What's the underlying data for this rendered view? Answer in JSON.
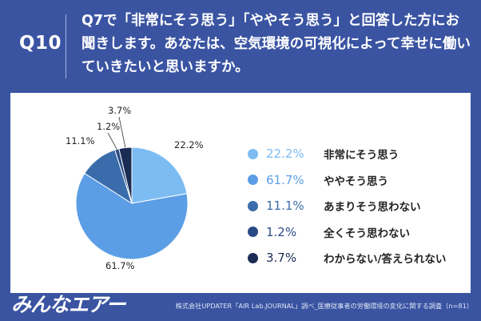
{
  "header": {
    "question_number": "Q10",
    "question_text": "Q7で「非常にそう思う」「ややそう思う」と回答した方にお聞きします。あなたは、空気環境の可視化によって幸せに働いていきたいと思いますか。"
  },
  "chart_data": {
    "type": "pie",
    "title": "",
    "slices": [
      {
        "label": "非常にそう思う",
        "value": 22.2,
        "display": "22.2%",
        "color": "#7cbcf3"
      },
      {
        "label": "ややそう思う",
        "value": 61.7,
        "display": "61.7%",
        "color": "#5c9ee6"
      },
      {
        "label": "あまりそう思わない",
        "value": 11.1,
        "display": "11.1%",
        "color": "#3a6cab"
      },
      {
        "label": "全くそう思わない",
        "value": 1.2,
        "display": "1.2%",
        "color": "#2a4a86"
      },
      {
        "label": "わからない/答えられない",
        "value": 3.7,
        "display": "3.7%",
        "color": "#1a2c54"
      }
    ],
    "legend_position": "right",
    "start_angle": "12 o'clock, clockwise"
  },
  "footer": {
    "logo_text": "みんなエアー",
    "source": "株式会社UPDATER「AIR Lab.JOURNAL」調べ_医療従事者の労働環境の変化に関する調査（n=81）"
  },
  "colors": {
    "header_bg": "#3a54a2",
    "panel_bg": "#ffffff"
  }
}
